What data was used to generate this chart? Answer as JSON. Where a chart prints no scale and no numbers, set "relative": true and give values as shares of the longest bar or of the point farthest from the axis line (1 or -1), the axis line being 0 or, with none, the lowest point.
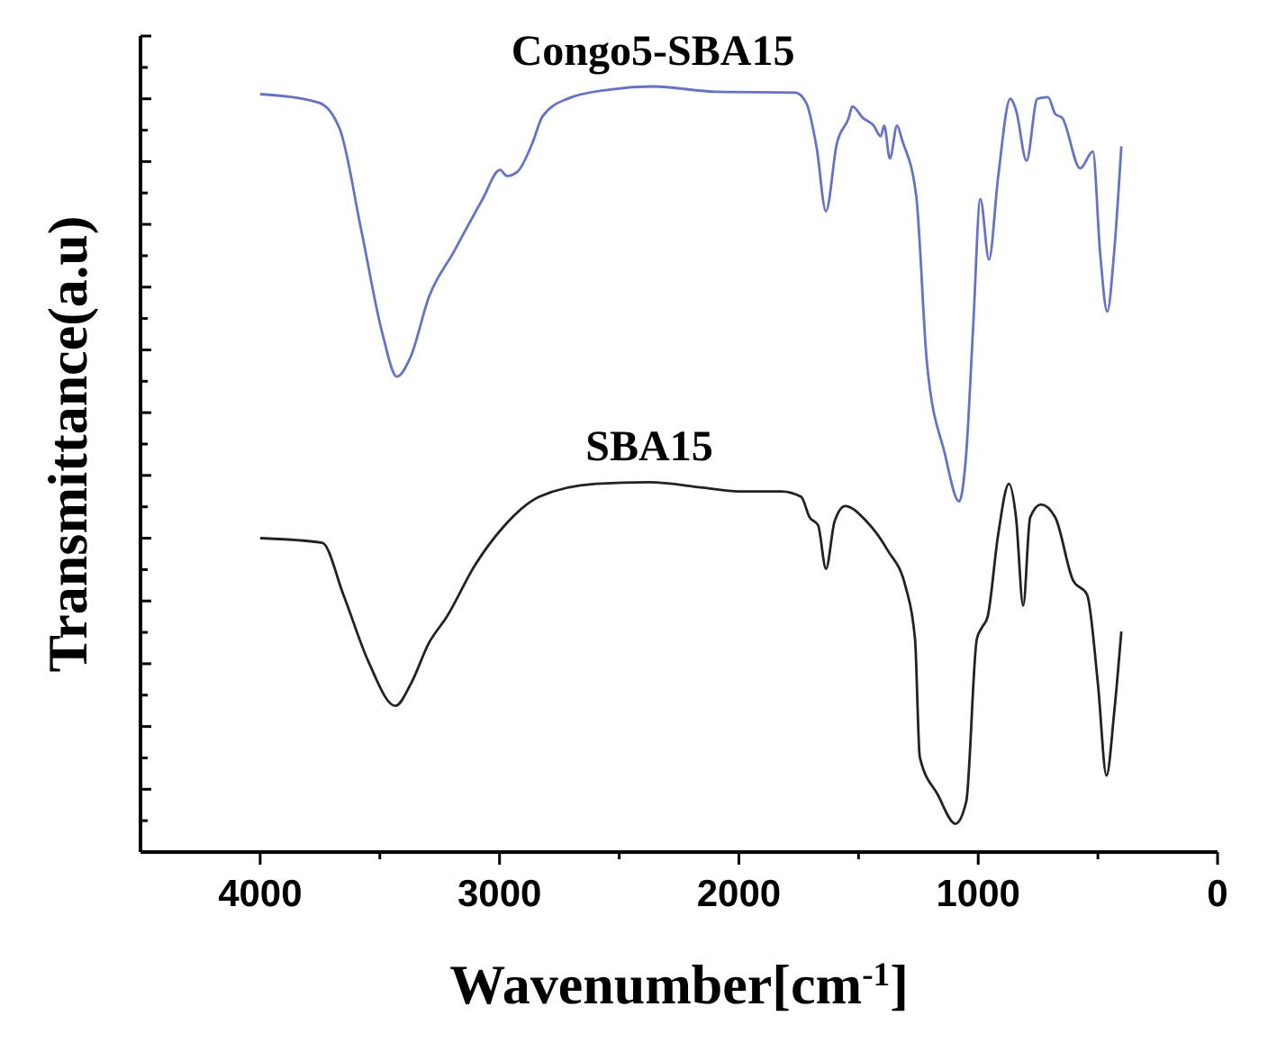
{
  "chart_data": {
    "type": "line",
    "relative": true,
    "xlabel": "Wavenumber[cm$^{-1}$]",
    "ylabel": "Transmittance(a.u)",
    "xlim": [
      4500,
      0
    ],
    "xticks": [
      4000,
      {
        "value": 3500,
        "label": null
      },
      3000,
      {
        "value": 2500,
        "label": null
      },
      2000,
      {
        "value": 1500,
        "label": null
      },
      1000,
      {
        "value": 500,
        "label": null
      },
      0
    ],
    "grid": false,
    "marker": "none",
    "line_style": "solid",
    "series": [
      {
        "name": "Congo5-SBA15",
        "color": "#6673c4",
        "x": [
          4000,
          3756,
          3667,
          3578,
          3489,
          3429,
          3370,
          3295,
          3191,
          3072,
          2998,
          2968,
          2924,
          2864,
          2820,
          2715,
          2537,
          2359,
          2091,
          1764,
          1719,
          1675,
          1636,
          1591,
          1541,
          1526,
          1482,
          1437,
          1407,
          1393,
          1369,
          1339,
          1318,
          1259,
          1214,
          1140,
          1080,
          1050,
          1021,
          991,
          955,
          917,
          866,
          842,
          798,
          753,
          708,
          678,
          649,
          574,
          521,
          491,
          461,
          432,
          402
        ],
        "values": [
          0.99,
          0.979,
          0.944,
          0.813,
          0.677,
          0.621,
          0.648,
          0.725,
          0.784,
          0.852,
          0.891,
          0.883,
          0.889,
          0.925,
          0.961,
          0.984,
          0.996,
          1.0,
          0.993,
          0.992,
          0.979,
          0.92,
          0.837,
          0.925,
          0.959,
          0.974,
          0.959,
          0.949,
          0.935,
          0.949,
          0.906,
          0.949,
          0.93,
          0.857,
          0.638,
          0.521,
          0.458,
          0.521,
          0.687,
          0.853,
          0.774,
          0.881,
          0.984,
          0.969,
          0.903,
          0.984,
          0.986,
          0.964,
          0.959,
          0.893,
          0.915,
          0.784,
          0.706,
          0.784,
          0.922
        ]
      },
      {
        "name": "SBA15",
        "color": "#222222",
        "x": [
          4000,
          3741,
          3652,
          3548,
          3435,
          3370,
          3295,
          3221,
          3102,
          2983,
          2834,
          2596,
          2374,
          2150,
          2002,
          1823,
          1740,
          1704,
          1669,
          1636,
          1600,
          1556,
          1467,
          1378,
          1303,
          1264,
          1244,
          1169,
          1095,
          1050,
          1006,
          985,
          961,
          917,
          872,
          842,
          812,
          783,
          738,
          678,
          604,
          545,
          500,
          464,
          432,
          402
        ],
        "values": [
          0.41,
          0.404,
          0.336,
          0.249,
          0.191,
          0.22,
          0.273,
          0.307,
          0.375,
          0.425,
          0.464,
          0.481,
          0.483,
          0.476,
          0.471,
          0.471,
          0.464,
          0.437,
          0.427,
          0.37,
          0.432,
          0.452,
          0.432,
          0.394,
          0.346,
          0.278,
          0.124,
          0.075,
          0.037,
          0.066,
          0.278,
          0.293,
          0.307,
          0.414,
          0.481,
          0.437,
          0.322,
          0.437,
          0.454,
          0.437,
          0.355,
          0.336,
          0.22,
          0.1,
          0.182,
          0.288
        ]
      }
    ]
  }
}
